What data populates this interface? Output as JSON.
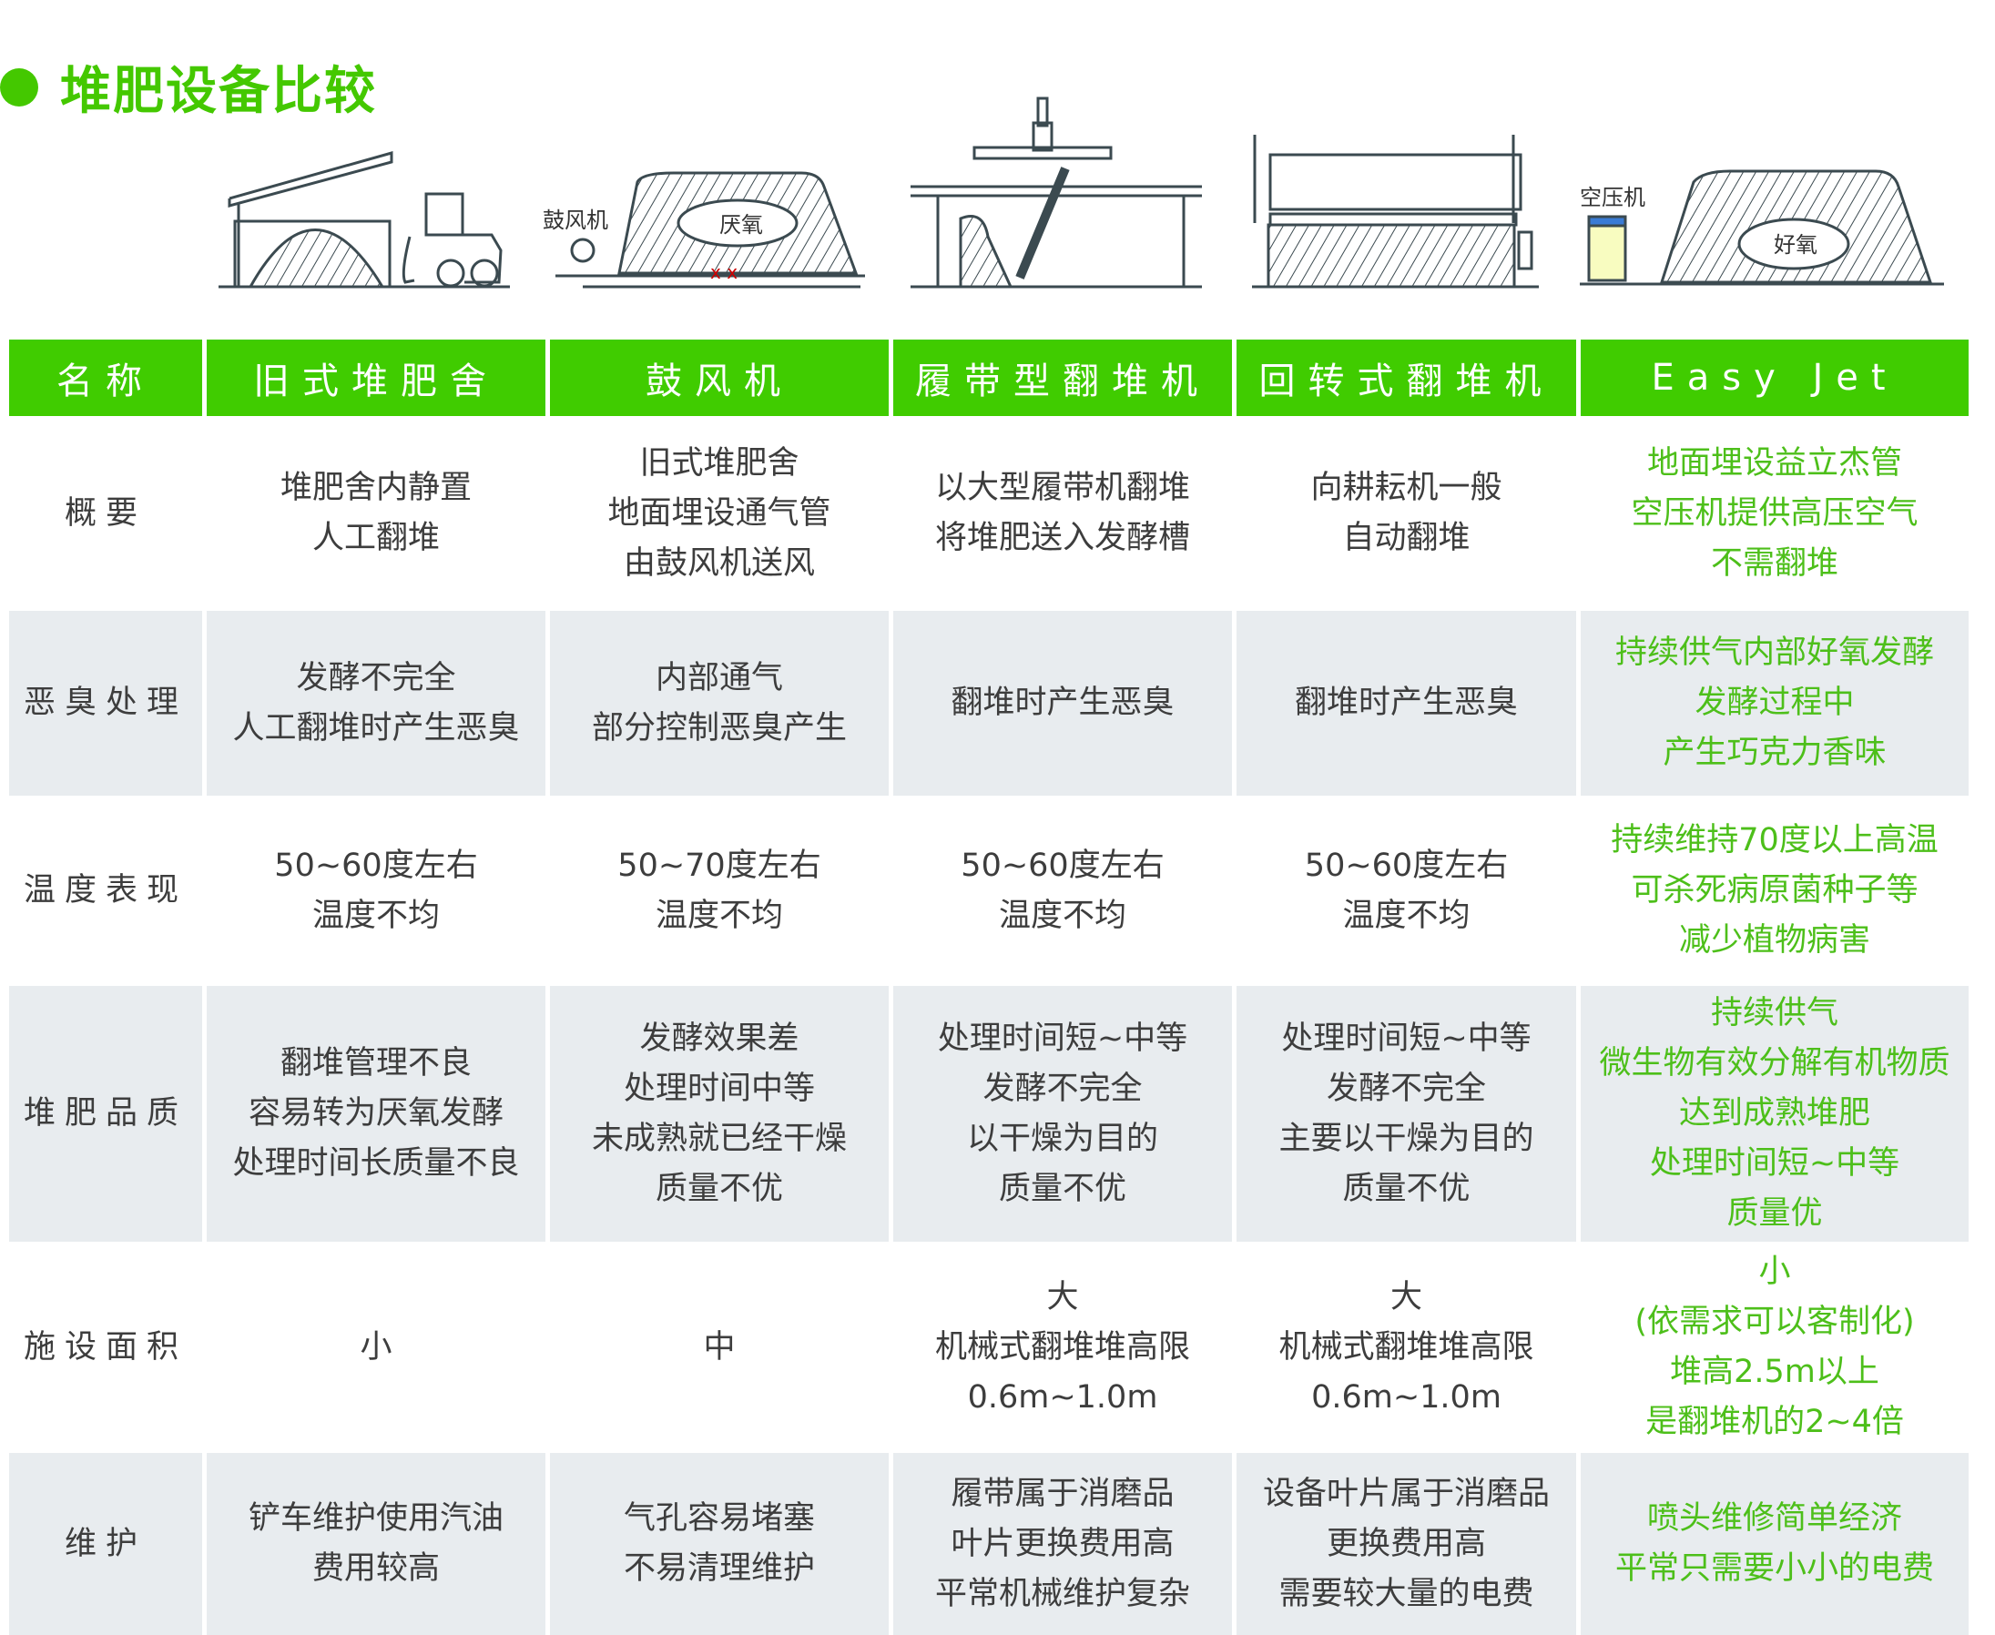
{
  "title": "堆肥设备比较",
  "illustration_labels": {
    "blower": "鼓风机",
    "anaerobic": "厌氧",
    "compressor": "空压机",
    "aerobic": "好氧"
  },
  "colors": {
    "accent": "#40cc00",
    "easyjet_text": "#4dbf1a",
    "row_alt": "#e8ecef"
  },
  "headers": [
    "名称",
    "旧式堆肥舍",
    "鼓风机",
    "履带型翻堆机",
    "回转式翻堆机",
    "Easy Jet"
  ],
  "rows": [
    {
      "label": "概要",
      "cells": [
        "堆肥舍内静置\n人工翻堆",
        "旧式堆肥舍\n地面埋设通气管\n由鼓风机送风",
        "以大型履带机翻堆\n将堆肥送入发酵槽",
        "向耕耘机一般\n自动翻堆",
        "地面埋设益立杰管\n空压机提供高压空气\n不需翻堆"
      ]
    },
    {
      "label": "恶臭处理",
      "cells": [
        "发酵不完全\n人工翻堆时产生恶臭",
        "内部通气\n部分控制恶臭产生",
        "翻堆时产生恶臭",
        "翻堆时产生恶臭",
        "持续供气内部好氧发酵\n发酵过程中\n产生巧克力香味"
      ]
    },
    {
      "label": "温度表现",
      "cells": [
        "50~60度左右\n温度不均",
        "50~70度左右\n温度不均",
        "50~60度左右\n温度不均",
        "50~60度左右\n温度不均",
        "持续维持70度以上高温\n可杀死病原菌种子等\n减少植物病害"
      ]
    },
    {
      "label": "堆肥品质",
      "cells": [
        "翻堆管理不良\n容易转为厌氧发酵\n处理时间长质量不良",
        "发酵效果差\n处理时间中等\n未成熟就已经干燥\n质量不优",
        "处理时间短~中等\n发酵不完全\n以干燥为目的\n质量不优",
        "处理时间短~中等\n发酵不完全\n主要以干燥为目的\n质量不优",
        "持续供气\n微生物有效分解有机物质\n达到成熟堆肥\n处理时间短~中等\n质量优"
      ]
    },
    {
      "label": "施设面积",
      "cells": [
        "小",
        "中",
        "大\n机械式翻堆堆高限\n0.6m~1.0m",
        "大\n机械式翻堆堆高限\n0.6m~1.0m",
        "小\n(依需求可以客制化)\n堆高2.5m以上\n是翻堆机的2~4倍"
      ]
    },
    {
      "label": "维护",
      "cells": [
        "铲车维护使用汽油\n费用较高",
        "气孔容易堵塞\n不易清理维护",
        "履带属于消磨品\n叶片更换费用高\n平常机械维护复杂",
        "设备叶片属于消磨品\n更换费用高\n需要较大量的电费",
        "喷头维修简单经济\n平常只需要小小的电费"
      ]
    }
  ]
}
